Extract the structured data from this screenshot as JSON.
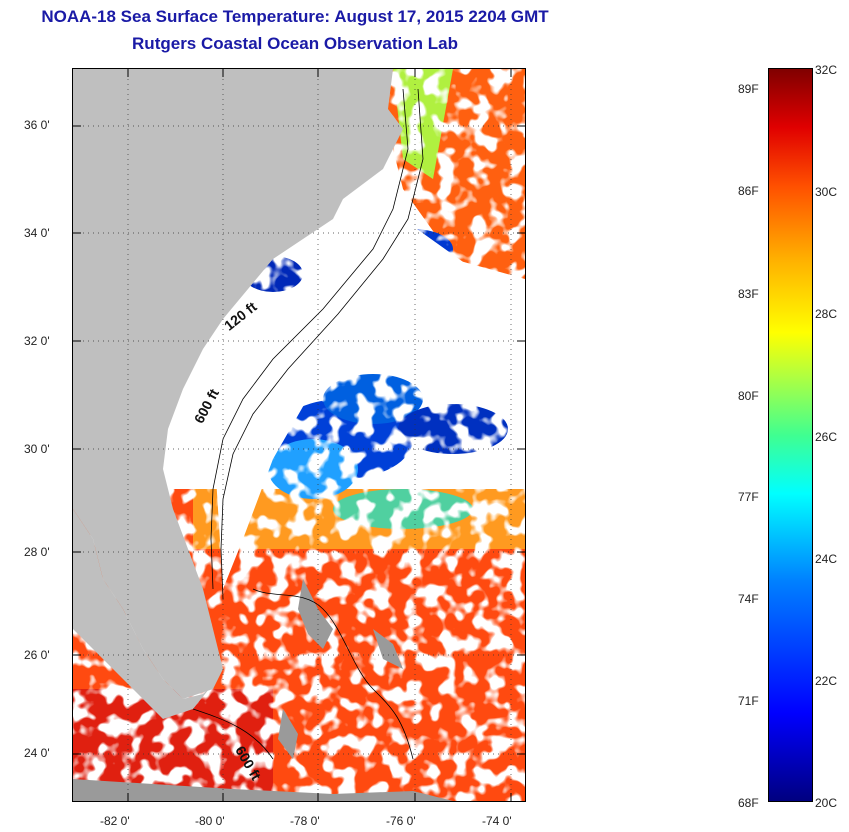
{
  "title": "NOAA-18 Sea Surface Temperature:  August 17, 2015 2204 GMT",
  "subtitle": "Rutgers Coastal Ocean Observation Lab",
  "map": {
    "lat_ticks": [
      "36 0'",
      "34 0'",
      "32 0'",
      "30 0'",
      "28 0'",
      "26 0'",
      "24 0'"
    ],
    "lon_ticks": [
      "-82 0'",
      "-80 0'",
      "-78 0'",
      "-76 0'",
      "-74 0'"
    ],
    "depth_labels": [
      "120 ft",
      "600 ft",
      "600 ft"
    ],
    "colors": {
      "land": "#bfbfbf",
      "cloud": "#ffffff",
      "warm": "#ff4000",
      "cold": "#0030c0",
      "contour": "#000000"
    }
  },
  "colorbar": {
    "fahrenheit": [
      "89F",
      "86F",
      "83F",
      "80F",
      "77F",
      "74F",
      "71F",
      "68F"
    ],
    "celsius": [
      "32C",
      "30C",
      "28C",
      "26C",
      "24C",
      "22C",
      "20C"
    ]
  }
}
